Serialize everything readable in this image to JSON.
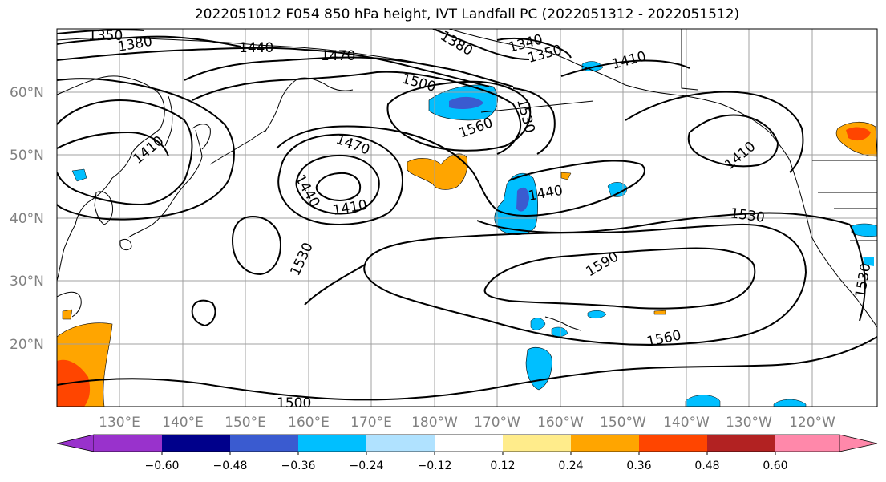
{
  "title": "2022051012 F054 850 hPa height, IVT Landfall PC (2022051312 - 2022051512)",
  "lat_labels": [
    "60°N",
    "50°N",
    "40°N",
    "30°N",
    "20°N"
  ],
  "lon_labels": [
    "130°E",
    "140°E",
    "150°E",
    "160°E",
    "170°E",
    "180°W",
    "170°W",
    "160°W",
    "150°W",
    "140°W",
    "130°W",
    "120°W"
  ],
  "contour_labels": [
    "1350",
    "1380",
    "1440",
    "1470",
    "1380",
    "1350",
    "1340",
    "1410",
    "1500",
    "1530",
    "1560",
    "1410",
    "1470",
    "1440",
    "1410",
    "1440",
    "1410",
    "1530",
    "1530",
    "1590",
    "1530",
    "1560",
    "1500"
  ],
  "colorbar": {
    "colors": [
      "#9932cc",
      "#00008b",
      "#3a5bd0",
      "#00bfff",
      "#b0e2ff",
      "#ffffff",
      "#ffec8b",
      "#ffa500",
      "#ff4500",
      "#b22222",
      "#ff88aa"
    ],
    "tick_labels": [
      "−0.60",
      "−0.48",
      "−0.36",
      "−0.24",
      "−0.12",
      "0.12",
      "0.24",
      "0.36",
      "0.48",
      "0.60"
    ]
  },
  "colors": {
    "neg_light": "#00bfff",
    "neg_mid": "#3a5bd0",
    "pos_light": "#ffa500",
    "pos_mid": "#ff4500",
    "pos_pale": "#ffec8b"
  }
}
